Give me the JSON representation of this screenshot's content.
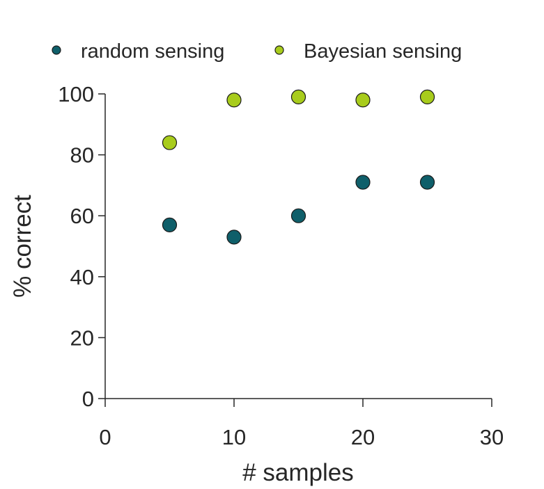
{
  "chart_data": {
    "type": "scatter",
    "title": "",
    "xlabel": "# samples",
    "ylabel": "% correct",
    "xlim": [
      0,
      30
    ],
    "ylim": [
      0,
      100
    ],
    "xticks": [
      0,
      10,
      20,
      30
    ],
    "yticks": [
      0,
      20,
      40,
      60,
      80,
      100
    ],
    "grid": false,
    "legend_position": "top",
    "series": [
      {
        "name": "random sensing",
        "color": "#0f5f6a",
        "x": [
          5,
          10,
          15,
          20,
          25
        ],
        "y": [
          57,
          53,
          60,
          71,
          71
        ]
      },
      {
        "name": "Bayesian sensing",
        "color": "#a8cc1c",
        "x": [
          5,
          10,
          15,
          20,
          25
        ],
        "y": [
          84,
          98,
          99,
          98,
          99
        ]
      }
    ]
  }
}
